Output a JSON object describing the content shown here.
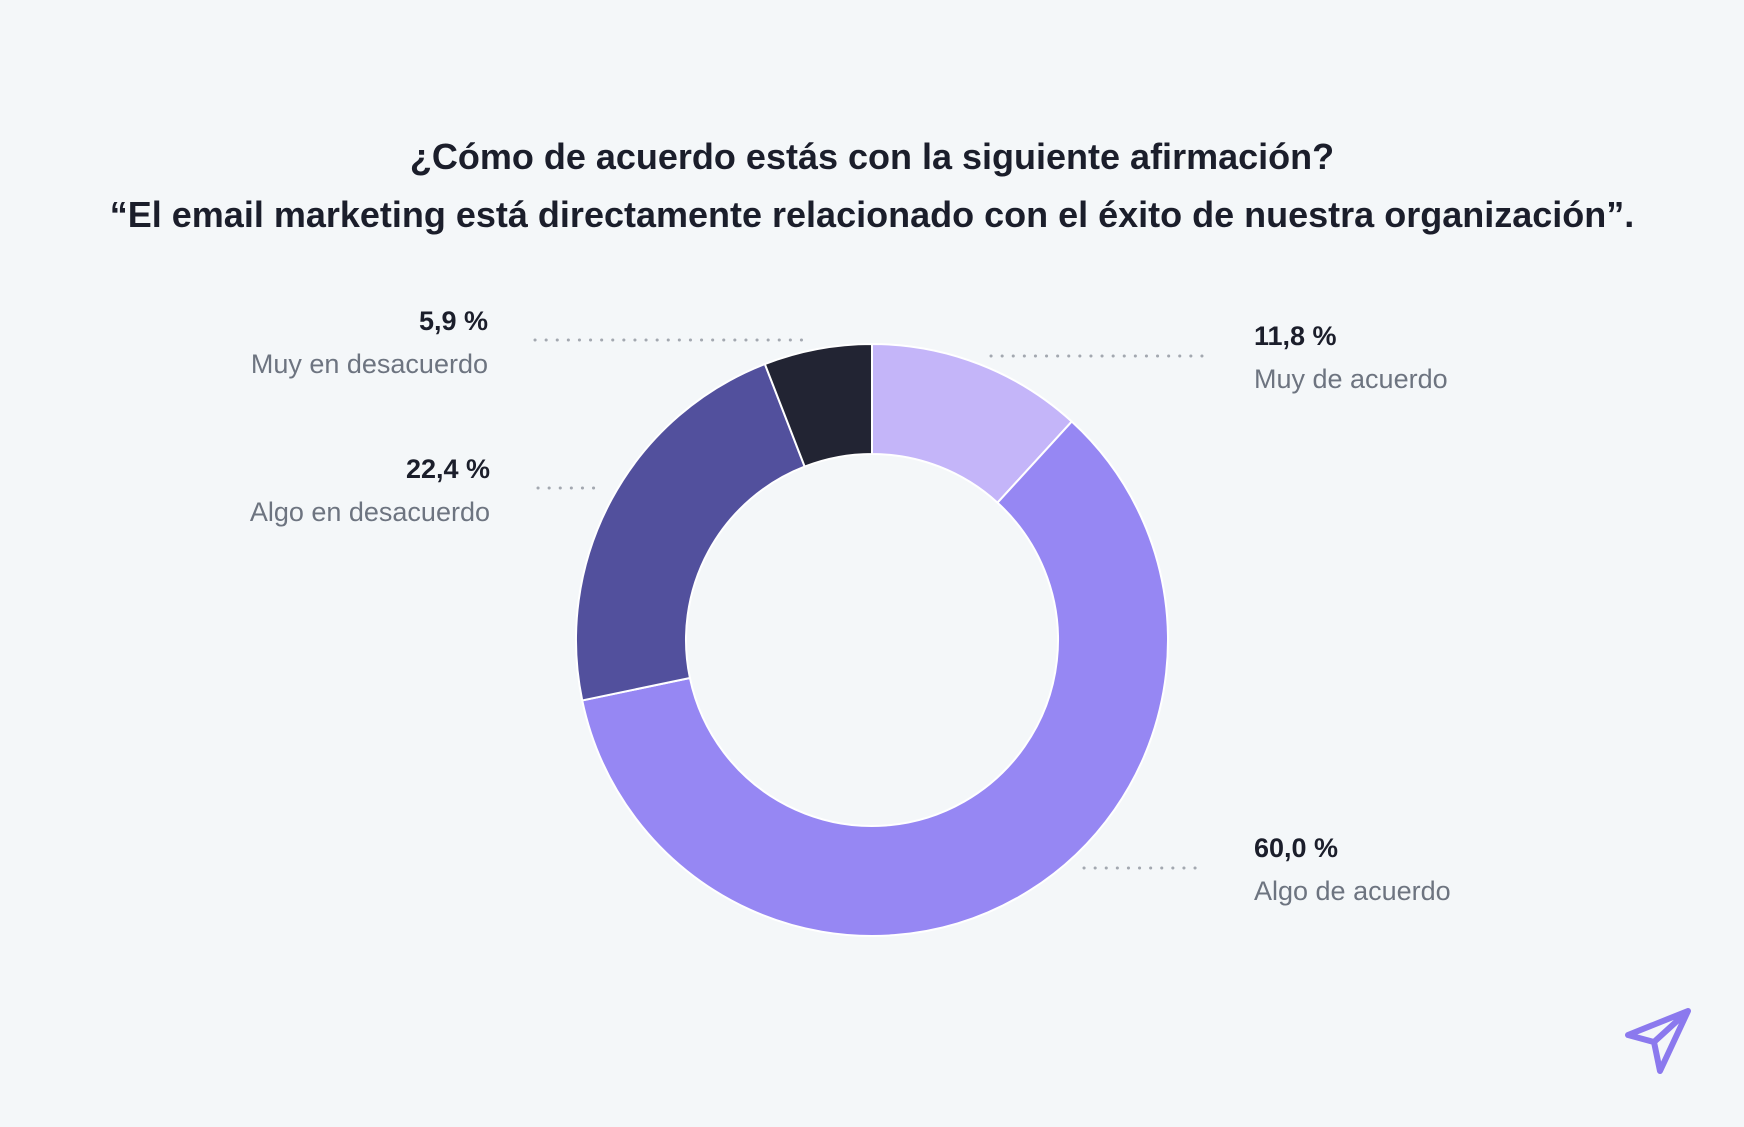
{
  "chart_data": {
    "type": "pie",
    "variant": "donut",
    "title": [
      "¿Cómo de acuerdo estás con la siguiente afirmación?",
      "“El email marketing está directamente relacionado con el éxito de nuestra organización”."
    ],
    "categories": [
      "Muy de acuerdo",
      "Algo de acuerdo",
      "Algo en desacuerdo",
      "Muy en desacuerdo"
    ],
    "values": [
      11.8,
      60.0,
      22.4,
      5.9
    ],
    "value_labels": [
      "11,8 %",
      "60,0 %",
      "22,4 %",
      "5,9 %"
    ],
    "colors": [
      "#c4b5f9",
      "#9687f3",
      "#52509d",
      "#222433"
    ],
    "legend": "none",
    "label_placement": "outside"
  },
  "colors": {
    "background": "#f4f7f9",
    "title": "#1b1e2b",
    "category_text": "#6d7480",
    "leader_dots": "#a3a8b0",
    "logo": "#8b79ee"
  },
  "icons": {
    "brand_logo": "paper-plane-icon"
  }
}
